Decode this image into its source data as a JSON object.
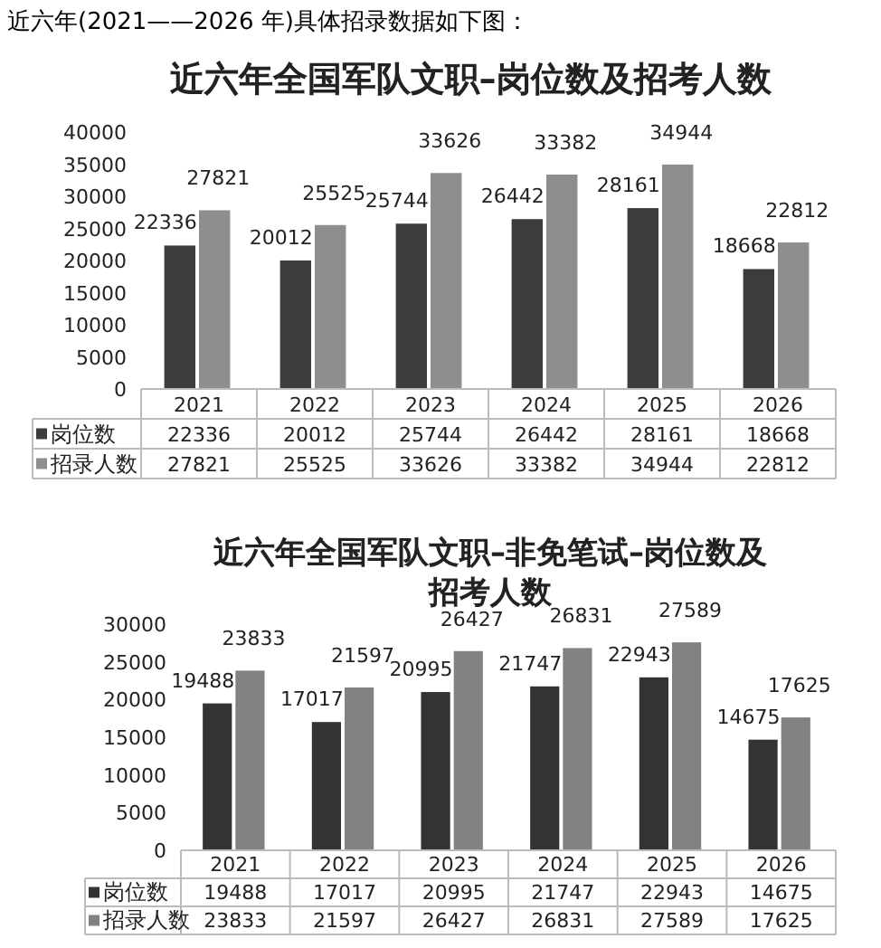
{
  "chart_data": [
    {
      "type": "bar",
      "title": "近六年全国军队文职–岗位数及招考人数",
      "annotations": [
        "近六年(2021——2026 年)具体招录数据如下图："
      ],
      "categories": [
        "2021",
        "2022",
        "2023",
        "2024",
        "2025",
        "2026"
      ],
      "series": [
        {
          "name": "岗位数",
          "color": "#3c3c3c",
          "values": [
            22336,
            20012,
            25744,
            26442,
            28161,
            18668
          ],
          "value_labels": [
            "22336",
            "20012",
            "25744",
            "26442",
            "28161",
            "18668"
          ]
        },
        {
          "name": "招录人数",
          "color": "#8e8e8e",
          "values": [
            27821,
            25525,
            33626,
            33382,
            34944,
            22812
          ],
          "value_labels": [
            "27821",
            "25525",
            "33626",
            "33382",
            "34944",
            "22812"
          ]
        }
      ],
      "ylim": [
        0,
        40000
      ],
      "yticks": [
        0,
        5000,
        10000,
        15000,
        20000,
        25000,
        30000,
        35000,
        40000
      ],
      "data_labels": true,
      "legend": "bottom"
    },
    {
      "type": "bar",
      "title": "近六年全国军队文职–非免笔试–岗位数及招考人数",
      "categories": [
        "2021",
        "2022",
        "2023",
        "2024",
        "2025",
        "2026"
      ],
      "series": [
        {
          "name": "岗位数",
          "color": "#333333",
          "values": [
            19488,
            17017,
            20995,
            21747,
            22943,
            14675
          ],
          "value_labels": [
            "19488",
            "17017",
            "20995",
            "21747",
            "22943",
            "14675"
          ]
        },
        {
          "name": "招录人数",
          "color": "#828282",
          "values": [
            23833,
            21597,
            26427,
            26831,
            27589,
            17625
          ],
          "value_labels": [
            "23833",
            "21597",
            "26427",
            "26831",
            "27589",
            "17625"
          ]
        }
      ],
      "ylim": [
        0,
        30000
      ],
      "yticks": [
        0,
        5000,
        10000,
        15000,
        20000,
        25000,
        30000
      ],
      "data_labels": true,
      "legend": "bottom"
    }
  ]
}
